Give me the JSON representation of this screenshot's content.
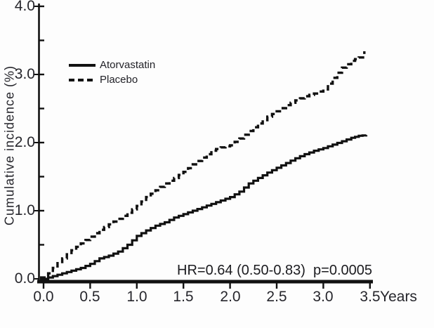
{
  "page": {
    "background": "#fdfdfd",
    "ink": "#111111",
    "text_color": "#26262c"
  },
  "chart_data": {
    "type": "line",
    "title": "",
    "ylabel": "Cumulative incidence (%)",
    "xlabel": "Years",
    "xlim": [
      0,
      3.5
    ],
    "ylim": [
      0,
      4.0
    ],
    "grid": false,
    "legend_position": "upper-left-inside",
    "annotation": "HR=0.64 (0.50-0.83)  p=0.0005",
    "x_ticks": [
      "0.0",
      "0.5",
      "1.0",
      "1.5",
      "2.0",
      "2.5",
      "3.0",
      "3.5"
    ],
    "y_ticks": [
      "0.0",
      "1.0",
      "2.0",
      "3.0",
      "4.0"
    ],
    "y_minor_tick_step": 0.5,
    "series": [
      {
        "name": "Atorvastatin",
        "style": "solid",
        "color": "#111111",
        "x": [
          0,
          0.1,
          0.2,
          0.3,
          0.4,
          0.5,
          0.6,
          0.7,
          0.8,
          0.9,
          1.0,
          1.1,
          1.2,
          1.3,
          1.4,
          1.5,
          1.6,
          1.7,
          1.8,
          1.9,
          2.0,
          2.1,
          2.2,
          2.3,
          2.4,
          2.5,
          2.6,
          2.7,
          2.8,
          2.9,
          3.0,
          3.1,
          3.2,
          3.3,
          3.38,
          3.46
        ],
        "y": [
          0.0,
          0.04,
          0.08,
          0.12,
          0.16,
          0.22,
          0.3,
          0.34,
          0.4,
          0.5,
          0.63,
          0.71,
          0.78,
          0.83,
          0.9,
          0.95,
          1.0,
          1.05,
          1.1,
          1.15,
          1.2,
          1.28,
          1.4,
          1.48,
          1.56,
          1.63,
          1.7,
          1.77,
          1.83,
          1.88,
          1.92,
          1.97,
          2.02,
          2.07,
          2.1,
          2.11
        ]
      },
      {
        "name": "Placebo",
        "style": "dashed",
        "color": "#111111",
        "x": [
          0,
          0.05,
          0.1,
          0.2,
          0.3,
          0.4,
          0.5,
          0.6,
          0.7,
          0.8,
          0.9,
          1.0,
          1.1,
          1.2,
          1.3,
          1.4,
          1.5,
          1.6,
          1.7,
          1.8,
          1.9,
          2.0,
          2.1,
          2.2,
          2.3,
          2.4,
          2.5,
          2.6,
          2.7,
          2.8,
          2.9,
          3.0,
          3.1,
          3.2,
          3.3,
          3.38,
          3.44
        ],
        "y": [
          0.02,
          0.08,
          0.16,
          0.3,
          0.42,
          0.52,
          0.62,
          0.72,
          0.8,
          0.88,
          0.97,
          1.07,
          1.2,
          1.3,
          1.4,
          1.48,
          1.57,
          1.68,
          1.78,
          1.88,
          1.93,
          1.96,
          2.06,
          2.17,
          2.28,
          2.38,
          2.46,
          2.55,
          2.62,
          2.68,
          2.72,
          2.78,
          2.95,
          3.1,
          3.2,
          3.25,
          3.34
        ]
      }
    ]
  }
}
